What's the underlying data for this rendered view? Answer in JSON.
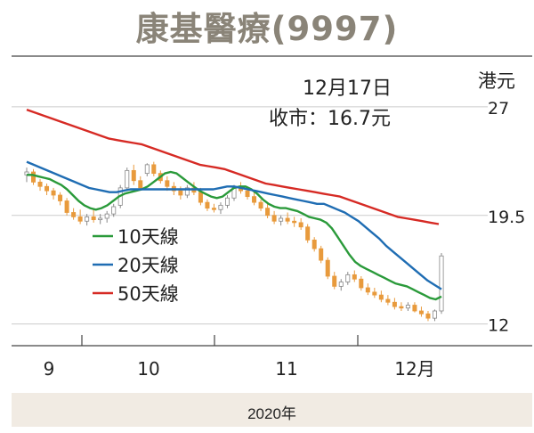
{
  "title": "康基醫療(9997)",
  "unit_label": "港元",
  "annotation": {
    "date": "12月17日",
    "close": "收市：16.7元"
  },
  "year_label": "2020年",
  "colors": {
    "candle_up": "#ffffff",
    "candle_down": "#e89a3c",
    "ma10": "#2a9a3a",
    "ma20": "#1f6db3",
    "ma50": "#d62a24",
    "grid": "#cccccc",
    "footer_bg": "#f1ebe3"
  },
  "chart_data": {
    "type": "line",
    "title": "康基醫療(9997)",
    "ylabel": "港元",
    "yticks": [
      {
        "value": 27,
        "label": "27"
      },
      {
        "value": 19.5,
        "label": "19.5"
      },
      {
        "value": 12,
        "label": "12"
      }
    ],
    "ylim": [
      10.5,
      30.5
    ],
    "xticks": [
      "9",
      "10",
      "11",
      "12月"
    ],
    "grid": true,
    "legend_position": "left",
    "series": [
      {
        "name": "10天線",
        "color": "#2a9a3a",
        "values": [
          22.3,
          22.3,
          22.2,
          22.1,
          22.0,
          21.8,
          21.6,
          21.3,
          20.9,
          20.5,
          20.2,
          20.0,
          19.9,
          20.0,
          20.2,
          20.5,
          20.8,
          21.0,
          21.1,
          21.2,
          21.3,
          21.5,
          21.8,
          22.1,
          22.4,
          22.5,
          22.4,
          22.1,
          21.8,
          21.5,
          21.2,
          21.0,
          20.8,
          20.7,
          20.8,
          21.1,
          21.4,
          21.5,
          21.5,
          21.3,
          21.0,
          20.6,
          20.3,
          20.1,
          20.0,
          20.0,
          19.9,
          19.8,
          19.6,
          19.4,
          19.3,
          19.2,
          19.0,
          18.6,
          18.0,
          17.4,
          16.8,
          16.3,
          16.0,
          15.8,
          15.6,
          15.4,
          15.2,
          15.0,
          14.8,
          14.7,
          14.6,
          14.4,
          14.2,
          14.0,
          13.8,
          13.7,
          13.9
        ]
      },
      {
        "name": "20天線",
        "color": "#1f6db3",
        "values": [
          23.2,
          23.0,
          22.8,
          22.6,
          22.4,
          22.2,
          22.0,
          21.8,
          21.6,
          21.4,
          21.3,
          21.2,
          21.1,
          21.1,
          21.2,
          21.3,
          21.3,
          21.3,
          21.3,
          21.3,
          21.3,
          21.3,
          21.3,
          21.3,
          21.3,
          21.3,
          21.3,
          21.3,
          21.4,
          21.5,
          21.5,
          21.4,
          21.3,
          21.2,
          21.1,
          21.0,
          20.9,
          20.8,
          20.7,
          20.6,
          20.5,
          20.4,
          20.3,
          20.3,
          20.1,
          19.9,
          19.7,
          19.4,
          19.1,
          18.7,
          18.3,
          17.9,
          17.4,
          17.0,
          16.6,
          16.2,
          15.8,
          15.4,
          15.0,
          14.7,
          14.4
        ]
      },
      {
        "name": "50天線",
        "color": "#d62a24",
        "values": [
          26.8,
          26.6,
          26.4,
          26.2,
          26.0,
          25.8,
          25.6,
          25.4,
          25.2,
          25.0,
          24.8,
          24.7,
          24.6,
          24.5,
          24.4,
          24.2,
          24.0,
          23.8,
          23.6,
          23.4,
          23.2,
          23.0,
          22.9,
          22.8,
          22.7,
          22.5,
          22.3,
          22.1,
          21.9,
          21.7,
          21.6,
          21.5,
          21.4,
          21.3,
          21.2,
          21.1,
          21.0,
          20.9,
          20.8,
          20.6,
          20.4,
          20.2,
          20.0,
          19.8,
          19.6,
          19.4,
          19.3,
          19.2,
          19.1,
          19.0,
          18.9
        ]
      }
    ],
    "candles_note": "daily OHLC candlesticks, orange = down, white = up",
    "candles": [
      [
        22.3,
        22.8,
        21.8,
        22.5
      ],
      [
        22.5,
        22.7,
        21.6,
        21.8
      ],
      [
        21.8,
        22.0,
        21.2,
        21.5
      ],
      [
        21.5,
        21.7,
        20.9,
        21.2
      ],
      [
        21.2,
        21.4,
        20.6,
        20.9
      ],
      [
        20.9,
        21.1,
        20.2,
        20.5
      ],
      [
        20.5,
        20.7,
        19.5,
        19.7
      ],
      [
        19.7,
        20.0,
        19.2,
        19.4
      ],
      [
        19.4,
        19.9,
        18.9,
        19.1
      ],
      [
        19.1,
        19.6,
        18.8,
        19.4
      ],
      [
        19.4,
        19.9,
        19.0,
        19.2
      ],
      [
        19.2,
        19.6,
        18.9,
        19.3
      ],
      [
        19.3,
        19.8,
        19.0,
        19.6
      ],
      [
        19.6,
        20.3,
        19.4,
        20.1
      ],
      [
        20.2,
        21.6,
        20.0,
        21.4
      ],
      [
        21.4,
        22.8,
        21.2,
        22.6
      ],
      [
        22.6,
        23.0,
        21.6,
        21.9
      ],
      [
        21.9,
        22.2,
        21.2,
        21.4
      ],
      [
        22.4,
        23.1,
        22.2,
        23.0
      ],
      [
        23.0,
        23.2,
        22.2,
        22.4
      ],
      [
        22.4,
        22.6,
        21.7,
        21.9
      ],
      [
        21.9,
        22.2,
        21.2,
        21.5
      ],
      [
        21.5,
        21.8,
        20.9,
        21.2
      ],
      [
        21.2,
        21.5,
        20.6,
        20.9
      ],
      [
        20.9,
        21.6,
        20.7,
        21.4
      ],
      [
        21.4,
        21.8,
        20.9,
        21.1
      ],
      [
        21.1,
        21.4,
        20.2,
        20.4
      ],
      [
        20.4,
        20.6,
        19.8,
        20.0
      ],
      [
        20.0,
        20.3,
        19.7,
        19.9
      ],
      [
        19.9,
        20.4,
        19.6,
        20.2
      ],
      [
        20.2,
        20.9,
        20.0,
        20.7
      ],
      [
        20.7,
        21.6,
        20.5,
        21.4
      ],
      [
        21.4,
        21.8,
        21.0,
        21.2
      ],
      [
        21.2,
        21.5,
        20.6,
        20.8
      ],
      [
        20.8,
        21.1,
        20.2,
        20.4
      ],
      [
        20.4,
        20.6,
        19.8,
        20.0
      ],
      [
        20.0,
        20.3,
        19.3,
        19.5
      ],
      [
        19.5,
        19.8,
        18.9,
        19.1
      ],
      [
        19.1,
        19.5,
        18.8,
        19.3
      ],
      [
        19.3,
        19.7,
        18.9,
        19.1
      ],
      [
        19.1,
        19.4,
        18.7,
        19.0
      ],
      [
        19.0,
        19.3,
        18.5,
        18.7
      ],
      [
        18.7,
        18.9,
        17.6,
        17.8
      ],
      [
        17.8,
        18.0,
        17.0,
        17.2
      ],
      [
        17.2,
        17.4,
        16.2,
        16.4
      ],
      [
        16.4,
        16.6,
        15.1,
        15.3
      ],
      [
        15.3,
        15.6,
        14.4,
        14.6
      ],
      [
        14.6,
        15.1,
        14.3,
        14.9
      ],
      [
        14.9,
        15.6,
        14.7,
        15.4
      ],
      [
        15.4,
        15.7,
        14.9,
        15.1
      ],
      [
        15.1,
        15.3,
        14.3,
        14.5
      ],
      [
        14.5,
        14.8,
        14.0,
        14.2
      ],
      [
        14.2,
        14.5,
        13.8,
        14.0
      ],
      [
        14.0,
        14.3,
        13.5,
        13.7
      ],
      [
        13.7,
        14.0,
        13.3,
        13.5
      ],
      [
        13.5,
        13.8,
        13.0,
        13.2
      ],
      [
        13.2,
        13.5,
        12.9,
        13.1
      ],
      [
        13.1,
        13.5,
        12.9,
        13.3
      ],
      [
        13.3,
        13.5,
        12.8,
        12.9
      ],
      [
        12.9,
        13.2,
        12.5,
        12.7
      ],
      [
        12.7,
        12.9,
        12.2,
        12.4
      ],
      [
        12.4,
        13.0,
        12.2,
        12.9
      ],
      [
        12.9,
        16.9,
        12.7,
        16.7
      ]
    ]
  }
}
